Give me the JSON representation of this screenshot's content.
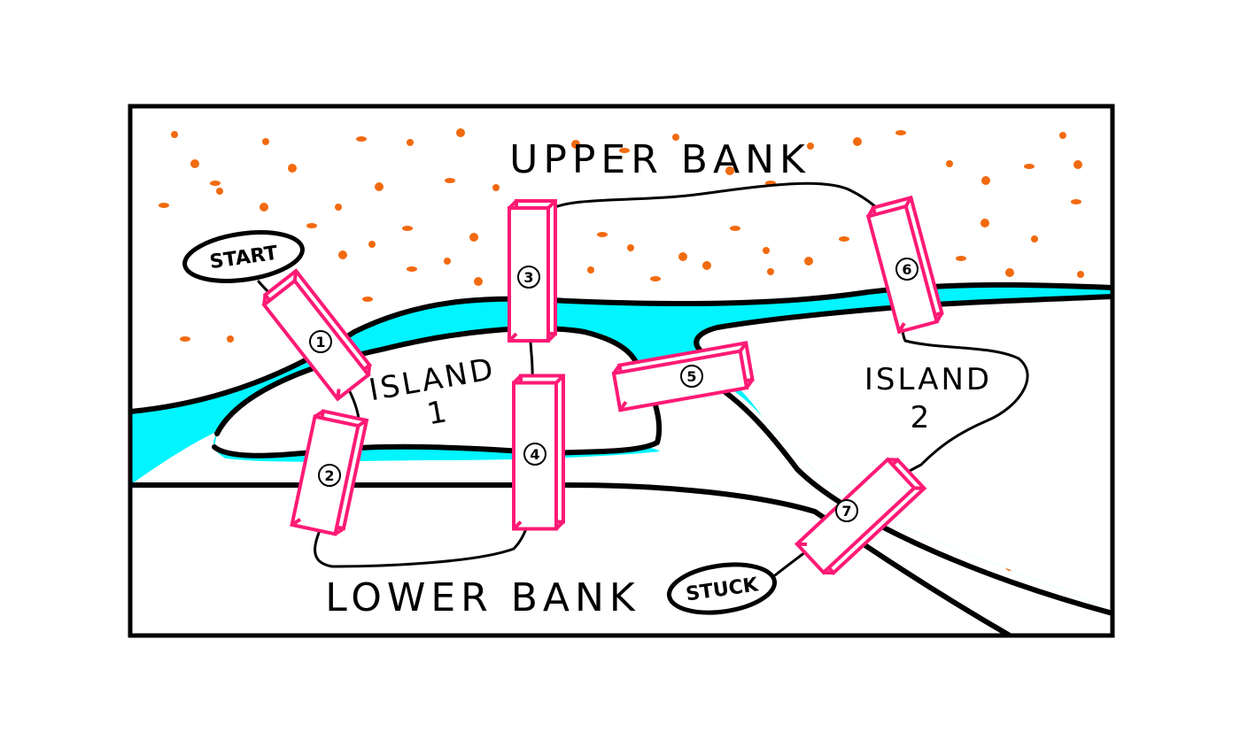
{
  "regions": {
    "upper": "UPPER BANK",
    "lower": "LOWER BANK",
    "island1_line1": "ISLAND",
    "island1_line2": "1",
    "island2_line1": "ISLAND",
    "island2_line2": "2"
  },
  "path_markers": {
    "start": "START",
    "end": "STUCK"
  },
  "bridges": [
    {
      "id": "bridge-1",
      "number": "1"
    },
    {
      "id": "bridge-2",
      "number": "2"
    },
    {
      "id": "bridge-3",
      "number": "3"
    },
    {
      "id": "bridge-4",
      "number": "4"
    },
    {
      "id": "bridge-5",
      "number": "5"
    },
    {
      "id": "bridge-6",
      "number": "6"
    },
    {
      "id": "bridge-7",
      "number": "7"
    }
  ],
  "colors": {
    "river": "#00f5ff",
    "bridge": "#ff1a75",
    "dots": "#f26a10",
    "outline": "#000000",
    "background": "#ffffff"
  }
}
